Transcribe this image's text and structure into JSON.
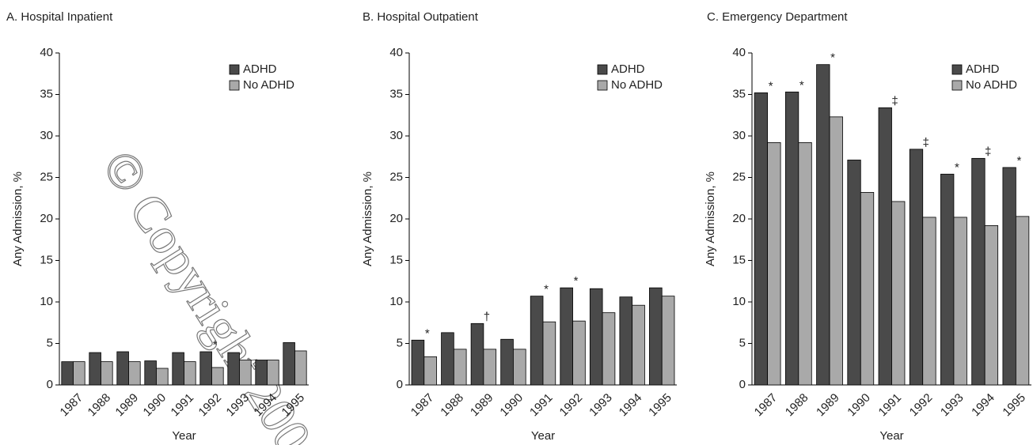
{
  "chart_data": [
    {
      "type": "bar",
      "title": "A. Hospital Inpatient",
      "xlabel": "Year",
      "ylabel": "Any Admission, %",
      "categories": [
        "1987",
        "1988",
        "1989",
        "1990",
        "1991",
        "1992",
        "1993",
        "1994",
        "1995"
      ],
      "series": [
        {
          "name": "ADHD",
          "color": "#4a4a4a",
          "values": [
            2.8,
            3.9,
            4.0,
            2.9,
            3.9,
            4.0,
            3.9,
            3.0,
            5.1
          ]
        },
        {
          "name": "No ADHD",
          "color": "#a9a9a9",
          "values": [
            2.8,
            2.8,
            2.8,
            2.0,
            2.8,
            2.1,
            3.0,
            3.0,
            4.1
          ]
        }
      ],
      "significance": [
        null,
        null,
        null,
        null,
        null,
        "*",
        null,
        null,
        null
      ],
      "ylim": [
        0,
        40
      ],
      "yticks": [
        0,
        5,
        10,
        15,
        20,
        25,
        30,
        35,
        40
      ],
      "legend": "upper right"
    },
    {
      "type": "bar",
      "title": "B. Hospital Outpatient",
      "xlabel": "Year",
      "ylabel": "Any Admission, %",
      "categories": [
        "1987",
        "1988",
        "1989",
        "1990",
        "1991",
        "1992",
        "1993",
        "1994",
        "1995"
      ],
      "series": [
        {
          "name": "ADHD",
          "color": "#4a4a4a",
          "values": [
            5.4,
            6.3,
            7.4,
            5.5,
            10.7,
            11.7,
            11.6,
            10.6,
            11.7
          ]
        },
        {
          "name": "No ADHD",
          "color": "#a9a9a9",
          "values": [
            3.4,
            4.3,
            4.3,
            4.3,
            7.6,
            7.7,
            8.7,
            9.6,
            10.7
          ]
        }
      ],
      "significance": [
        "*",
        null,
        "†",
        null,
        "*",
        "*",
        null,
        null,
        null
      ],
      "ylim": [
        0,
        40
      ],
      "yticks": [
        0,
        5,
        10,
        15,
        20,
        25,
        30,
        35,
        40
      ],
      "legend": "upper right"
    },
    {
      "type": "bar",
      "title": "C. Emergency Department",
      "xlabel": "Year",
      "ylabel": "Any Admission, %",
      "categories": [
        "1987",
        "1988",
        "1989",
        "1990",
        "1991",
        "1992",
        "1993",
        "1994",
        "1995"
      ],
      "series": [
        {
          "name": "ADHD",
          "color": "#4a4a4a",
          "values": [
            35.2,
            35.3,
            38.6,
            27.1,
            33.4,
            28.4,
            25.4,
            27.3,
            26.2
          ]
        },
        {
          "name": "No ADHD",
          "color": "#a9a9a9",
          "values": [
            29.2,
            29.2,
            32.3,
            23.2,
            22.1,
            20.2,
            20.2,
            19.2,
            20.3
          ]
        }
      ],
      "significance": [
        "*",
        "*",
        "*",
        null,
        "‡",
        "‡",
        "*",
        "‡",
        "*"
      ],
      "ylim": [
        0,
        40
      ],
      "yticks": [
        0,
        5,
        10,
        15,
        20,
        25,
        30,
        35,
        40
      ],
      "legend": "upper right"
    }
  ],
  "watermark": "© Copyright 200"
}
